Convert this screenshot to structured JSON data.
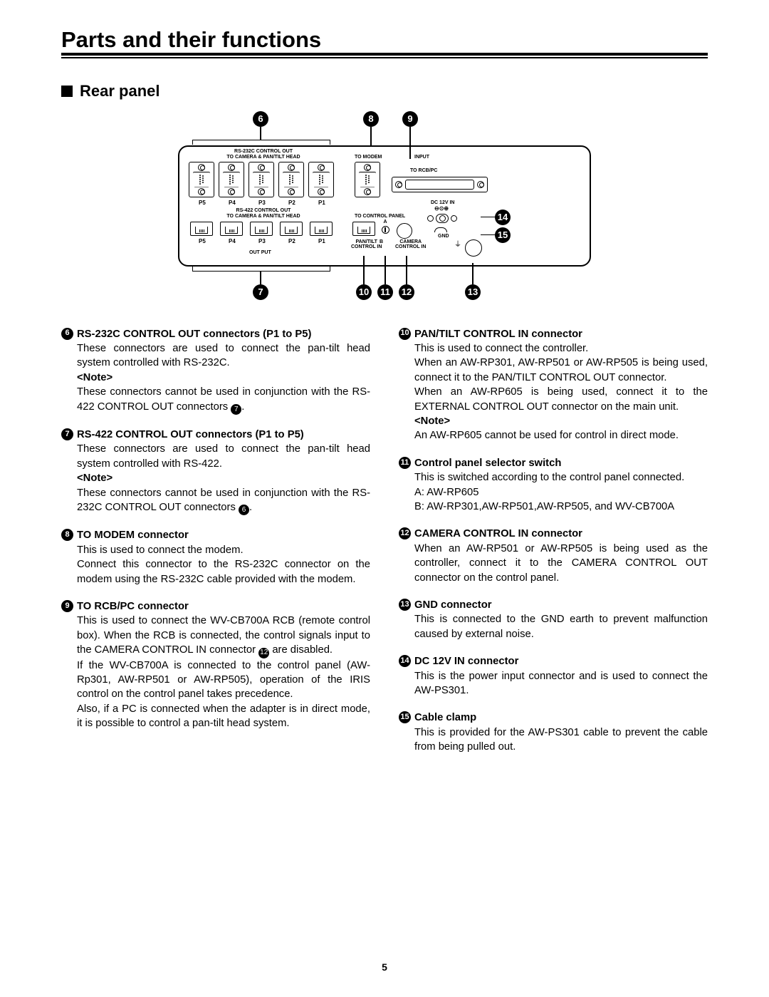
{
  "page_title": "Parts and their functions",
  "section_title": "Rear panel",
  "page_number": "5",
  "diagram": {
    "labels": {
      "rs232_out": "RS-232C CONTROL OUT",
      "to_camera_head": "TO CAMERA & PAN/TILT HEAD",
      "rs422_out": "RS-422 CONTROL OUT",
      "to_modem": "TO MODEM",
      "input": "INPUT",
      "to_rcb_pc": "TO RCB/PC",
      "dc12v": "DC 12V IN",
      "dc_polarity": "⊖⊙⊕",
      "to_control_panel": "TO CONTROL PANEL",
      "pan_tilt_ctrl_in": "PAN/TILT\nCONTROL IN",
      "camera_ctrl_in": "CAMERA\nCONTROL IN",
      "gnd": "GND",
      "out_put": "OUT PUT",
      "p1": "P1",
      "p2": "P2",
      "p3": "P3",
      "p4": "P4",
      "p5": "P5",
      "a": "A",
      "b": "B"
    },
    "callouts": {
      "c6": "6",
      "c7": "7",
      "c8": "8",
      "c9": "9",
      "c10": "10",
      "c11": "11",
      "c12": "12",
      "c13": "13",
      "c14": "14",
      "c15": "15"
    }
  },
  "items_left": [
    {
      "num": "6",
      "title": "RS-232C CONTROL OUT connectors (P1 to P5)",
      "body": "These connectors are used to connect the pan-tilt head system controlled with RS-232C.",
      "note_label": "<Note>",
      "note": "These connectors cannot be used in conjunction with the RS-422 CONTROL OUT connectors ",
      "note_ref": "7",
      "note_after": "."
    },
    {
      "num": "7",
      "title": "RS-422 CONTROL OUT connectors (P1 to P5)",
      "body": "These connectors are used to connect the pan-tilt head system controlled with RS-422.",
      "note_label": "<Note>",
      "note": "These connectors cannot be used in conjunction with the RS-232C CONTROL OUT connectors ",
      "note_ref": "6",
      "note_after": "."
    },
    {
      "num": "8",
      "title": "TO MODEM connector",
      "body": "This is used to connect the modem.\nConnect this connector to the RS-232C connector on the modem using the RS-232C cable provided with the modem."
    },
    {
      "num": "9",
      "title": "TO RCB/PC connector",
      "body": "This is used to connect the WV-CB700A RCB (remote control box).  When the RCB is connected, the control signals input to the CAMERA CONTROL IN connector ",
      "inline_ref": "12",
      "body2": " are disabled.\nIf the WV-CB700A is connected to the control panel (AW-Rp301, AW-RP501 or AW-RP505), operation of the IRIS control on the control panel takes precedence.\nAlso, if a PC is connected when the adapter is in direct mode, it is possible to control a pan-tilt head system."
    }
  ],
  "items_right": [
    {
      "num": "10",
      "title": "PAN/TILT CONTROL IN connector",
      "body": "This is used to connect the controller.\nWhen an AW-RP301, AW-RP501 or AW-RP505 is being used, connect it to the PAN/TILT CONTROL OUT connector.\nWhen an AW-RP605 is being used, connect it to the EXTERNAL CONTROL OUT connector on the main unit.",
      "note_label": "<Note>",
      "note": "An AW-RP605 cannot be used for control in direct mode."
    },
    {
      "num": "11",
      "title": "Control panel selector switch",
      "body": "This is switched according to the control panel connected.\nA: AW-RP605\nB: AW-RP301,AW-RP501,AW-RP505, and WV-CB700A"
    },
    {
      "num": "12",
      "title": "CAMERA CONTROL IN connector",
      "body": "When an AW-RP501 or AW-RP505 is being used as the controller, connect it to the CAMERA CONTROL OUT connector on the control panel."
    },
    {
      "num": "13",
      "title": "GND connector",
      "body": "This is connected to the GND earth to prevent malfunction caused by external noise."
    },
    {
      "num": "14",
      "title": "DC 12V IN connector",
      "body": "This is the power input connector and is used to connect the AW-PS301."
    },
    {
      "num": "15",
      "title": "Cable clamp",
      "body": "This is provided for the AW-PS301 cable to prevent the cable from being pulled out."
    }
  ]
}
